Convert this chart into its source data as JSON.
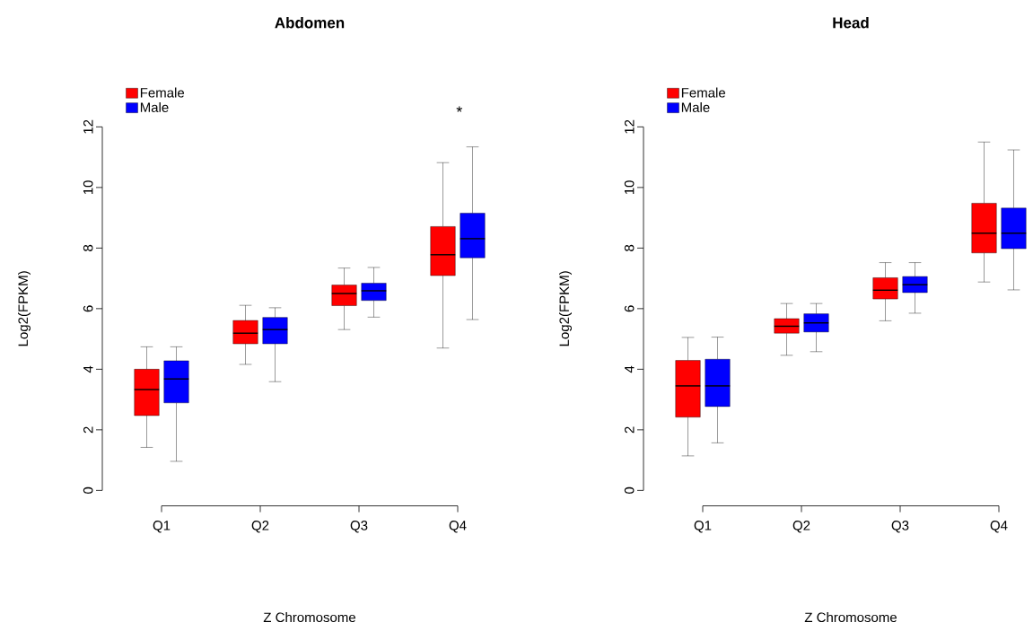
{
  "chart_data": [
    {
      "type": "box",
      "title": "Abdomen",
      "xlabel": "Z Chromosome",
      "ylabel": "Log2(FPKM)",
      "categories": [
        "Q1",
        "Q2",
        "Q3",
        "Q4"
      ],
      "ylim": [
        0,
        12
      ],
      "yticks": [
        0,
        2,
        4,
        6,
        8,
        10,
        12
      ],
      "legend": "top left",
      "grid": false,
      "annotations": [
        "*"
      ],
      "series": [
        {
          "name": "Female",
          "color": "#ff0000",
          "boxes": [
            {
              "low": 1.42,
              "q1": 2.47,
              "median": 3.33,
              "q3": 4.0,
              "high": 4.74
            },
            {
              "low": 4.16,
              "q1": 4.84,
              "median": 5.19,
              "q3": 5.61,
              "high": 6.11
            },
            {
              "low": 5.31,
              "q1": 6.1,
              "median": 6.5,
              "q3": 6.78,
              "high": 7.34
            },
            {
              "low": 4.7,
              "q1": 7.09,
              "median": 7.78,
              "q3": 8.71,
              "high": 10.82
            }
          ]
        },
        {
          "name": "Male",
          "color": "#0000ff",
          "boxes": [
            {
              "low": 0.96,
              "q1": 2.89,
              "median": 3.68,
              "q3": 4.28,
              "high": 4.74
            },
            {
              "low": 3.59,
              "q1": 4.84,
              "median": 5.31,
              "q3": 5.71,
              "high": 6.03
            },
            {
              "low": 5.72,
              "q1": 6.27,
              "median": 6.59,
              "q3": 6.84,
              "high": 7.36
            },
            {
              "low": 5.64,
              "q1": 7.68,
              "median": 8.31,
              "q3": 9.15,
              "high": 11.34
            }
          ]
        }
      ]
    },
    {
      "type": "box",
      "title": "Head",
      "xlabel": "Z Chromosome",
      "ylabel": "Log2(FPKM)",
      "categories": [
        "Q1",
        "Q2",
        "Q3",
        "Q4"
      ],
      "ylim": [
        0,
        12
      ],
      "yticks": [
        0,
        2,
        4,
        6,
        8,
        10,
        12
      ],
      "legend": "top left",
      "grid": false,
      "series": [
        {
          "name": "Female",
          "color": "#ff0000",
          "boxes": [
            {
              "low": 1.14,
              "q1": 2.42,
              "median": 3.45,
              "q3": 4.29,
              "high": 5.05
            },
            {
              "low": 4.46,
              "q1": 5.19,
              "median": 5.42,
              "q3": 5.67,
              "high": 6.17
            },
            {
              "low": 5.6,
              "q1": 6.32,
              "median": 6.61,
              "q3": 7.02,
              "high": 7.52
            },
            {
              "low": 6.88,
              "q1": 7.84,
              "median": 8.49,
              "q3": 9.48,
              "high": 11.5
            }
          ]
        },
        {
          "name": "Male",
          "color": "#0000ff",
          "boxes": [
            {
              "low": 1.57,
              "q1": 2.77,
              "median": 3.45,
              "q3": 4.33,
              "high": 5.06
            },
            {
              "low": 4.58,
              "q1": 5.23,
              "median": 5.53,
              "q3": 5.83,
              "high": 6.17
            },
            {
              "low": 5.85,
              "q1": 6.53,
              "median": 6.79,
              "q3": 7.06,
              "high": 7.52
            },
            {
              "low": 6.62,
              "q1": 7.98,
              "median": 8.49,
              "q3": 9.32,
              "high": 11.24
            }
          ]
        }
      ]
    }
  ]
}
